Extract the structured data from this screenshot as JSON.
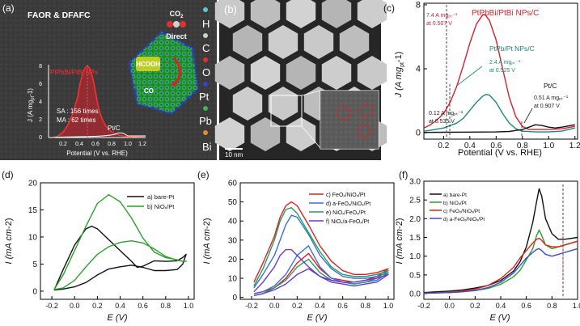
{
  "panels": {
    "a": {
      "label": "(a)",
      "title": "FAOR & DFAFC",
      "inset_label": "PtPbBi/PtBi NPs",
      "ylabel": "J (A mg",
      "ylabel_sub": "pt",
      "ylabel_end": "-1)",
      "xlabel": "Potential (V vs. RHE)",
      "ticks_x": [
        "0.2",
        "0.4",
        "0.6",
        "0.8",
        "1.0",
        "1.2"
      ],
      "ticks_y": [
        "0",
        "2",
        "4",
        "6",
        "8"
      ],
      "sa_text": "SA : 156 times",
      "ma_text": "MA : 62 times",
      "ptc_label": "Pt/C",
      "co2_label": "CO",
      "co2_sub": "2",
      "direct_label": "Direct",
      "hcooh_label": "HCOOH",
      "co_label": "CO",
      "legend": [
        {
          "name": "H",
          "color": "#5bc7d6"
        },
        {
          "name": "C",
          "color": "#cfcfcf"
        },
        {
          "name": "O",
          "color": "#e03030"
        },
        {
          "name": "Pt",
          "color": "#3346c8"
        },
        {
          "name": "Pb",
          "color": "#3fb54a"
        },
        {
          "name": "Bi",
          "color": "#e88a2a"
        }
      ]
    },
    "b": {
      "label": "(b)",
      "scale": "10 nm"
    }
  },
  "chart_data": [
    {
      "id": "c",
      "type": "line",
      "panel_label": "(c)",
      "xlabel": "Potential (V vs. RHE)",
      "ylabel": "J (A mg",
      "ylabel_sub": "pt",
      "ylabel_end": "-1)",
      "xlim": [
        0.05,
        1.22
      ],
      "ylim": [
        -0.4,
        8.1
      ],
      "xticks": [
        0.2,
        0.4,
        0.6,
        0.8,
        1.0,
        1.2
      ],
      "xtick_labels": [
        "0.2",
        "0.4",
        "0.6",
        "0.8",
        "1.0",
        "1.2"
      ],
      "yticks": [
        0,
        4,
        8
      ],
      "ytick_labels": [
        "0",
        "4",
        "8"
      ],
      "series": [
        {
          "name": "PtPbBi/PtBi NPs/C",
          "color": "#d9202c",
          "x": [
            0.05,
            0.1,
            0.15,
            0.2,
            0.25,
            0.3,
            0.35,
            0.4,
            0.45,
            0.5,
            0.52,
            0.55,
            0.6,
            0.65,
            0.7,
            0.75,
            0.8,
            0.85,
            0.9,
            1.0,
            1.1,
            1.2
          ],
          "y": [
            0.3,
            0.5,
            0.8,
            1.2,
            1.9,
            2.9,
            4.2,
            5.6,
            6.8,
            7.4,
            7.35,
            7.0,
            5.8,
            4.0,
            2.2,
            1.0,
            0.4,
            0.2,
            0.2,
            0.2,
            0.25,
            0.4
          ]
        },
        {
          "name": "PtPb/Pt NPs/C",
          "color": "#1a8a80",
          "x": [
            0.05,
            0.1,
            0.2,
            0.3,
            0.35,
            0.4,
            0.45,
            0.5,
            0.525,
            0.55,
            0.6,
            0.65,
            0.7,
            0.75,
            0.8,
            0.9,
            1.0,
            1.1,
            1.2
          ],
          "y": [
            0.1,
            0.15,
            0.3,
            0.6,
            0.9,
            1.4,
            1.9,
            2.3,
            2.4,
            2.35,
            1.9,
            1.2,
            0.6,
            0.25,
            0.1,
            0.05,
            0.05,
            0.1,
            0.3
          ]
        },
        {
          "name": "Pt/C",
          "color": "#111111",
          "x": [
            0.05,
            0.2,
            0.4,
            0.6,
            0.7,
            0.8,
            0.85,
            0.9,
            0.95,
            1.0,
            1.05,
            1.1,
            1.2
          ],
          "y": [
            0.02,
            0.03,
            0.04,
            0.05,
            0.08,
            0.2,
            0.35,
            0.5,
            0.45,
            0.35,
            0.3,
            0.35,
            0.5
          ]
        }
      ],
      "annotations": [
        {
          "text": "PtPbBi/PtBi NPs/C",
          "color": "#d9202c"
        },
        {
          "text": "7.4 A mgₚₜ⁻¹",
          "color": "#d9202c"
        },
        {
          "text": "at 0.507 V",
          "color": "#d9202c"
        },
        {
          "text": "PtPb/Pt NPs/C",
          "color": "#1a8a80"
        },
        {
          "text": "2.4 A mgₚₜ⁻¹",
          "color": "#1a8a80"
        },
        {
          "text": "at 0.525 V",
          "color": "#1a8a80"
        },
        {
          "text": "0.12 A mgₚₜ⁻¹",
          "color": "#222222"
        },
        {
          "text": "at 0.535 V",
          "color": "#222222"
        },
        {
          "text": "Pt/C",
          "color": "#111111"
        },
        {
          "text": "0.51 A mgₚₜ⁻¹",
          "color": "#222222"
        },
        {
          "text": "at 0.907 V",
          "color": "#222222"
        }
      ]
    },
    {
      "id": "d",
      "type": "line",
      "panel_label": "(d)",
      "xlabel": "E (V)",
      "ylabel": "I (mA cm",
      "ylabel_end": "-2)",
      "xlim": [
        -0.3,
        1.05
      ],
      "ylim": [
        -1.5,
        20
      ],
      "xticks": [
        -0.2,
        0.0,
        0.2,
        0.4,
        0.6,
        0.8,
        1.0
      ],
      "xtick_labels": [
        "-0.2",
        "0.0",
        "0.2",
        "0.4",
        "0.6",
        "0.8",
        "1.0"
      ],
      "yticks": [
        0,
        5,
        10,
        15,
        20
      ],
      "ytick_labels": [
        "0",
        "5",
        "10",
        "15",
        "20"
      ],
      "series": [
        {
          "name": "a) bare-Pt",
          "color": "#111111",
          "x": [
            -0.18,
            -0.1,
            0.0,
            0.1,
            0.15,
            0.2,
            0.3,
            0.4,
            0.5,
            0.55,
            0.6,
            0.7,
            0.8,
            0.9,
            0.95,
            0.98,
            0.95,
            0.9,
            0.8,
            0.7,
            0.6,
            0.5,
            0.4,
            0.3,
            0.2,
            0.1,
            0.0,
            -0.1,
            -0.18
          ],
          "y": [
            0.2,
            4,
            8.5,
            11.5,
            12,
            11.5,
            9.5,
            7.5,
            5.5,
            4.4,
            4.6,
            5.6,
            5.5,
            5.6,
            6.2,
            6.8,
            5.0,
            4.0,
            3.8,
            3.8,
            4.4,
            4.8,
            4.5,
            4.1,
            3.0,
            1.6,
            0.8,
            0.4,
            0.2
          ]
        },
        {
          "name": "b) NiOₓ/Pt",
          "color": "#2aa12a",
          "x": [
            -0.18,
            -0.1,
            0.0,
            0.1,
            0.2,
            0.3,
            0.4,
            0.5,
            0.6,
            0.7,
            0.8,
            0.9,
            0.95,
            0.98,
            0.95,
            0.9,
            0.8,
            0.7,
            0.6,
            0.5,
            0.4,
            0.3,
            0.2,
            0.1,
            0.0,
            -0.1,
            -0.18
          ],
          "y": [
            0.3,
            3,
            7.5,
            12,
            16.2,
            17.8,
            16.5,
            13.5,
            9.8,
            7.2,
            6.2,
            5.8,
            5.5,
            5.5,
            5.5,
            5.7,
            6.4,
            7.8,
            8.9,
            9.3,
            9.0,
            8.2,
            6.8,
            4.5,
            2.0,
            0.6,
            0.3
          ]
        }
      ],
      "legend": [
        "a) bare-Pt",
        "b) NiOₓ/Pt"
      ]
    },
    {
      "id": "e",
      "type": "line",
      "panel_label": "(e)",
      "xlabel": "E (V)",
      "ylabel": "I (mA cm",
      "ylabel_end": "-2)",
      "xlim": [
        -0.3,
        1.05
      ],
      "ylim": [
        -1,
        60
      ],
      "xticks": [
        -0.2,
        0.0,
        0.2,
        0.4,
        0.6,
        0.8,
        1.0
      ],
      "xtick_labels": [
        "-0.2",
        "0.0",
        "0.2",
        "0.4",
        "0.6",
        "0.8",
        "1.0"
      ],
      "yticks": [
        0,
        10,
        20,
        30,
        40,
        50,
        60
      ],
      "ytick_labels": [
        "0",
        "10",
        "20",
        "30",
        "40",
        "50",
        "60"
      ],
      "series": [
        {
          "name": "c) FeOₓ/NiOₓ/Pt",
          "color": "#e02020",
          "x": [
            -0.18,
            -0.1,
            0.0,
            0.05,
            0.1,
            0.15,
            0.2,
            0.3,
            0.4,
            0.5,
            0.6,
            0.7,
            0.8,
            0.9,
            1.0,
            0.9,
            0.8,
            0.7,
            0.6,
            0.5,
            0.4,
            0.3,
            0.2,
            0.1,
            0.0,
            -0.1,
            -0.18
          ],
          "y": [
            8,
            18,
            32,
            42,
            48,
            50,
            48,
            38,
            27,
            19,
            14,
            12,
            12,
            13,
            15,
            11,
            9,
            8,
            9,
            10,
            15,
            23,
            18,
            10,
            5,
            3,
            2
          ]
        },
        {
          "name": "d) a-FeOₓ/NiOₓ/Pt",
          "color": "#3a6fd8",
          "x": [
            -0.18,
            -0.1,
            0.0,
            0.05,
            0.1,
            0.15,
            0.2,
            0.3,
            0.4,
            0.5,
            0.6,
            0.7,
            0.8,
            0.9,
            1.0,
            0.9,
            0.8,
            0.7,
            0.6,
            0.5,
            0.4,
            0.3,
            0.2,
            0.1,
            0.0,
            -0.1,
            -0.18
          ],
          "y": [
            5,
            12,
            22,
            30,
            38,
            43,
            42,
            33,
            22,
            15,
            11,
            10,
            10,
            11,
            13,
            9,
            8,
            7,
            8,
            10,
            16,
            27,
            22,
            12,
            6,
            3,
            2
          ]
        },
        {
          "name": "e) NiOₓ/FeOₓ/Pt",
          "color": "#20a060",
          "x": [
            -0.18,
            -0.1,
            0.0,
            0.05,
            0.1,
            0.15,
            0.2,
            0.3,
            0.4,
            0.5,
            0.6,
            0.7,
            0.8,
            0.9,
            1.0,
            0.9,
            0.8,
            0.7,
            0.6,
            0.5,
            0.4,
            0.3,
            0.2,
            0.1,
            0.0,
            -0.1,
            -0.18
          ],
          "y": [
            6,
            15,
            30,
            40,
            46,
            47,
            44,
            34,
            24,
            16,
            12,
            11,
            11,
            12,
            14,
            10,
            8,
            7,
            8,
            9,
            13,
            20,
            16,
            9,
            5,
            2,
            1
          ]
        },
        {
          "name": "f) NiOₓ/a-FeOₓ/Pt",
          "color": "#6a3ad0",
          "x": [
            -0.18,
            -0.1,
            0.0,
            0.05,
            0.1,
            0.15,
            0.2,
            0.3,
            0.4,
            0.5,
            0.6,
            0.7,
            0.8,
            0.9,
            1.0,
            0.9,
            0.8,
            0.7,
            0.6,
            0.5,
            0.4,
            0.3,
            0.2,
            0.1,
            0.0,
            -0.1,
            -0.18
          ],
          "y": [
            3,
            8,
            16,
            22,
            25,
            25,
            22,
            16,
            11,
            9,
            8,
            8,
            9,
            10,
            12,
            8,
            7,
            6,
            7,
            8,
            11,
            15,
            12,
            7,
            4,
            2,
            1
          ]
        }
      ],
      "legend": [
        "c) FeOₓ/NiOₓ/Pt",
        "d) a-FeOₓ/NiOₓ/Pt",
        "e) NiOₓ/FeOₓ/Pt",
        "f) NiOₓ/a-FeOₓ/Pt"
      ]
    },
    {
      "id": "f",
      "type": "line",
      "panel_label": "(f)",
      "xlabel": "E (V)",
      "ylabel": "I (mA cm",
      "ylabel_end": "-2)",
      "xlim": [
        -0.2,
        1.0
      ],
      "ylim": [
        -0.15,
        3.0
      ],
      "xticks": [
        -0.2,
        0.0,
        0.2,
        0.4,
        0.6,
        0.8,
        1.0
      ],
      "xtick_labels": [
        "-0.2",
        "0.0",
        "0.2",
        "0.4",
        "0.6",
        "0.8",
        "1.0"
      ],
      "yticks": [
        0.0,
        0.5,
        1.0,
        1.5,
        2.0,
        2.5,
        3.0
      ],
      "ytick_labels": [
        "0.0",
        "0.5",
        "1.0",
        "1.5",
        "2.0",
        "2.5",
        "3.0"
      ],
      "series": [
        {
          "name": "a) bare-Pt",
          "color": "#111111",
          "x": [
            -0.2,
            -0.1,
            0.0,
            0.1,
            0.2,
            0.3,
            0.4,
            0.5,
            0.55,
            0.6,
            0.65,
            0.68,
            0.7,
            0.72,
            0.75,
            0.8,
            0.85,
            0.9,
            1.0
          ],
          "y": [
            0.03,
            0.05,
            0.07,
            0.1,
            0.15,
            0.22,
            0.35,
            0.6,
            0.85,
            1.25,
            1.9,
            2.45,
            2.8,
            2.6,
            2.0,
            1.6,
            1.45,
            1.45,
            1.5
          ]
        },
        {
          "name": "b) NiOₓ/Pt",
          "color": "#2aa12a",
          "x": [
            -0.2,
            -0.1,
            0.0,
            0.1,
            0.2,
            0.3,
            0.4,
            0.5,
            0.55,
            0.6,
            0.65,
            0.68,
            0.7,
            0.72,
            0.75,
            0.8,
            0.85,
            0.9,
            1.0
          ],
          "y": [
            0.01,
            0.02,
            0.03,
            0.05,
            0.08,
            0.14,
            0.25,
            0.45,
            0.62,
            0.9,
            1.2,
            1.55,
            1.7,
            1.55,
            1.3,
            1.2,
            1.25,
            1.3,
            1.4
          ]
        },
        {
          "name": "c) FeOₓ/NiOₓ/Pt",
          "color": "#e02020",
          "x": [
            -0.2,
            -0.1,
            0.0,
            0.1,
            0.2,
            0.3,
            0.4,
            0.5,
            0.55,
            0.6,
            0.65,
            0.68,
            0.7,
            0.72,
            0.75,
            0.8,
            0.85,
            0.9,
            1.0
          ],
          "y": [
            0.01,
            0.02,
            0.04,
            0.07,
            0.12,
            0.22,
            0.4,
            0.7,
            0.95,
            1.15,
            1.35,
            1.45,
            1.48,
            1.42,
            1.3,
            1.25,
            1.25,
            1.3,
            1.4
          ]
        },
        {
          "name": "d) a-FeOₓ/NiOₓ/Pt",
          "color": "#3a4fc8",
          "x": [
            -0.2,
            -0.1,
            0.0,
            0.1,
            0.2,
            0.3,
            0.4,
            0.5,
            0.55,
            0.6,
            0.65,
            0.68,
            0.7,
            0.72,
            0.75,
            0.8,
            0.85,
            0.9,
            1.0
          ],
          "y": [
            0.01,
            0.02,
            0.03,
            0.05,
            0.09,
            0.16,
            0.3,
            0.55,
            0.75,
            0.95,
            1.1,
            1.18,
            1.2,
            1.15,
            1.05,
            1.0,
            1.05,
            1.1,
            1.2
          ]
        }
      ],
      "legend": [
        "a) bare-Pt",
        "b) NiOₓ/Pt",
        "c) FeOₓ/NiOₓ/Pt",
        "d) a-FeOₓ/NiOₓ/Pt"
      ]
    }
  ]
}
